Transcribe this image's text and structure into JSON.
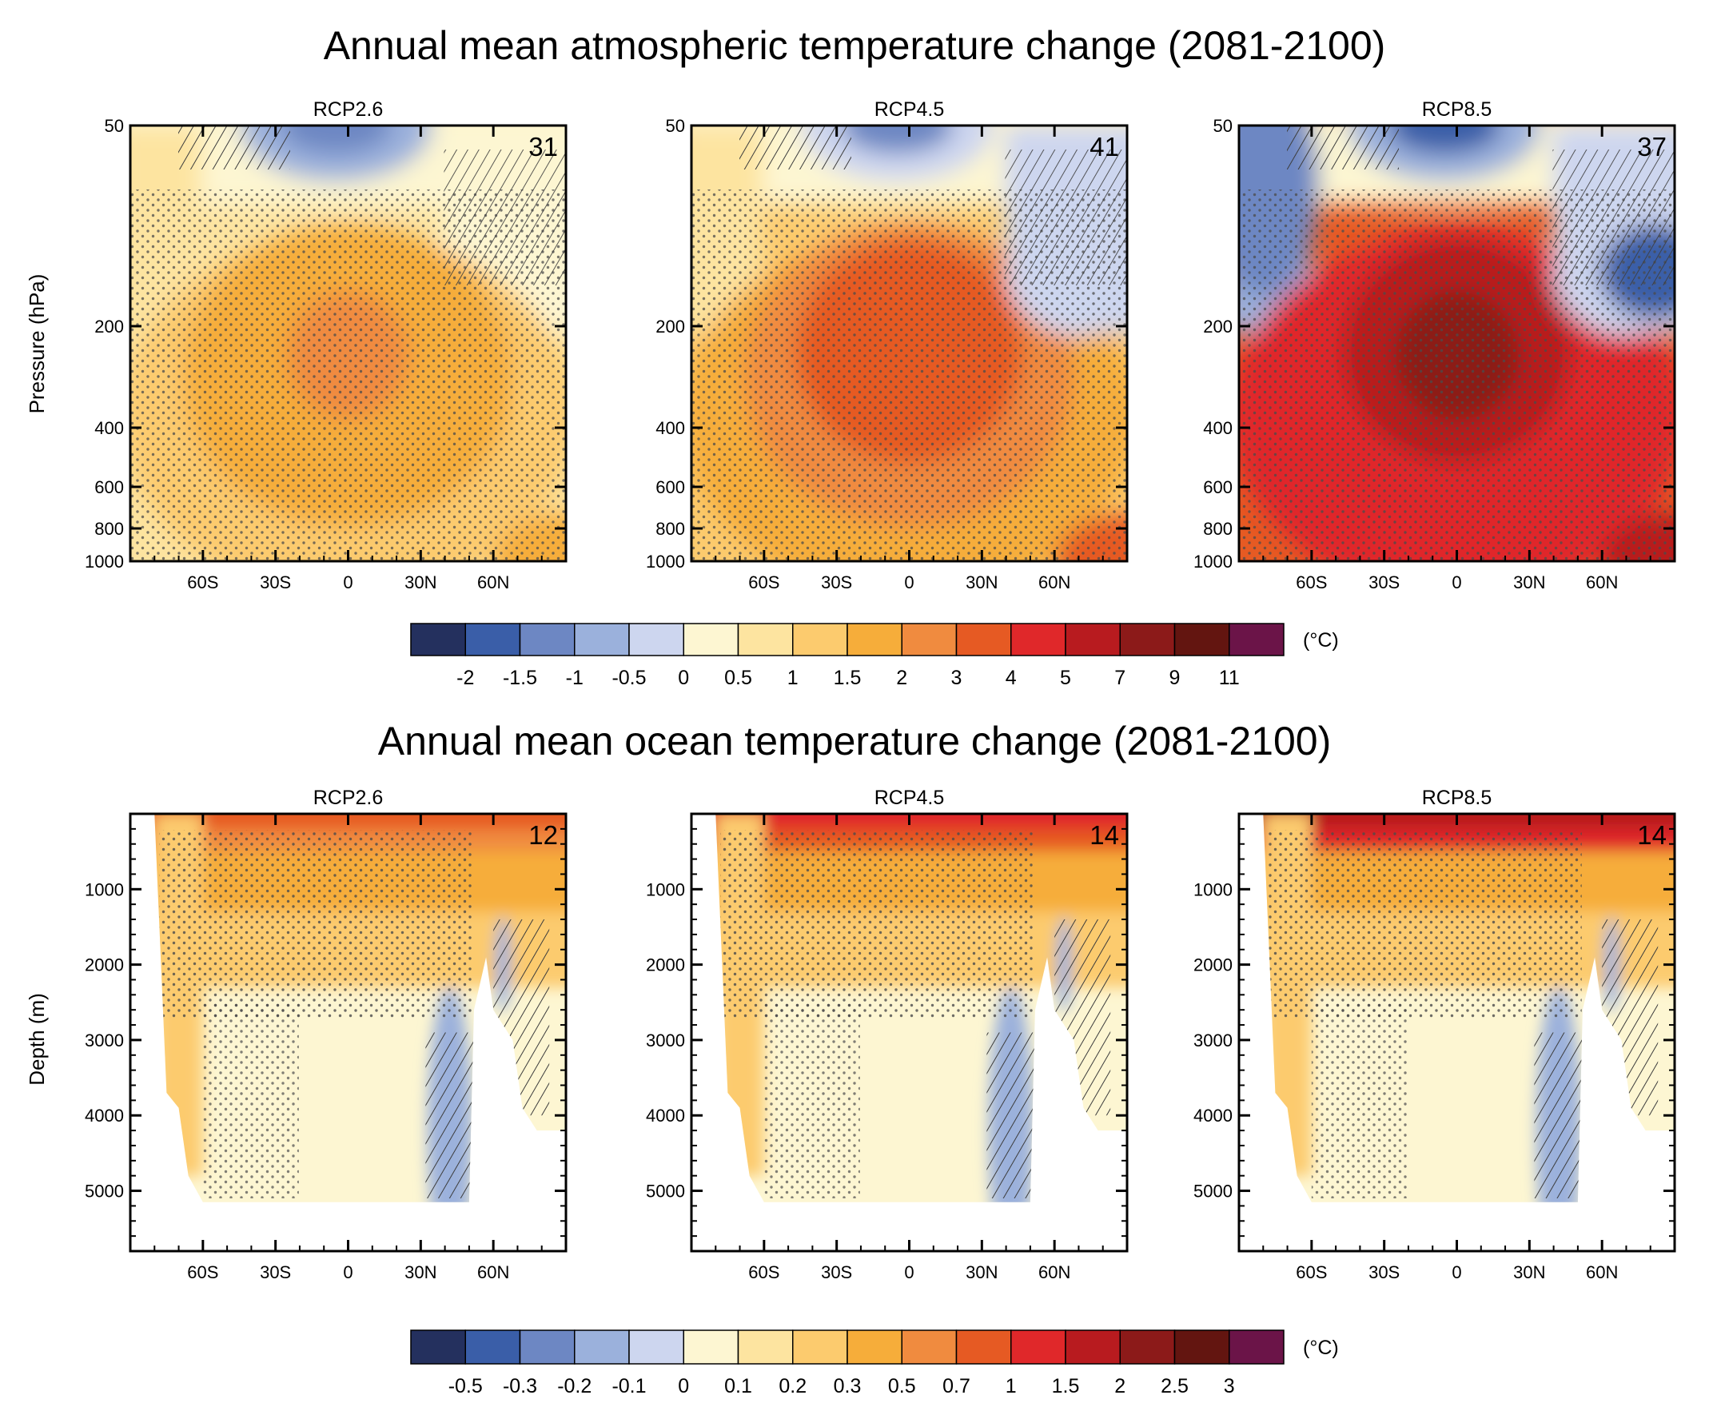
{
  "atmosphere": {
    "title": "Annual mean atmospheric temperature change (2081-2100)",
    "ylabel": "Pressure (hPa)",
    "unit": "(°C)",
    "y_ticks": [
      "50",
      "200",
      "400",
      "600",
      "800",
      "1000"
    ],
    "x_ticks": [
      "60S",
      "30S",
      "0",
      "30N",
      "60N"
    ],
    "colorbar_labels": [
      "-2",
      "-1.5",
      "-1",
      "-0.5",
      "0",
      "0.5",
      "1",
      "1.5",
      "2",
      "3",
      "4",
      "5",
      "7",
      "9",
      "11"
    ],
    "panels": [
      {
        "title": "RCP2.6",
        "models": "31"
      },
      {
        "title": "RCP4.5",
        "models": "41"
      },
      {
        "title": "RCP8.5",
        "models": "37"
      }
    ]
  },
  "ocean": {
    "title": "Annual mean ocean temperature change (2081-2100)",
    "ylabel": "Depth (m)",
    "unit": "(°C)",
    "y_ticks": [
      "1000",
      "2000",
      "3000",
      "4000",
      "5000"
    ],
    "x_ticks": [
      "60S",
      "30S",
      "0",
      "30N",
      "60N"
    ],
    "colorbar_labels": [
      "-0.5",
      "-0.3",
      "-0.2",
      "-0.1",
      "0",
      "0.1",
      "0.2",
      "0.3",
      "0.5",
      "0.7",
      "1",
      "1.5",
      "2",
      "2.5",
      "3"
    ],
    "panels": [
      {
        "title": "RCP2.6",
        "models": "12"
      },
      {
        "title": "RCP4.5",
        "models": "14"
      },
      {
        "title": "RCP8.5",
        "models": "14"
      }
    ]
  },
  "colorbar_colors": [
    "#24305e",
    "#3a5ea8",
    "#6d87c3",
    "#9bb1dc",
    "#cdd6ef",
    "#fdf6d2",
    "#fde4a0",
    "#fccb6e",
    "#f6ad3a",
    "#f08b3f",
    "#e65a23",
    "#e0282a",
    "#b81b1f",
    "#8c1a19",
    "#631510",
    "#6b1448"
  ],
  "chart_data": [
    {
      "type": "heatmap",
      "title": "Annual mean atmospheric temperature change (2081-2100)",
      "ylabel": "Pressure (hPa)",
      "unit": "°C",
      "x_range": [
        -90,
        90
      ],
      "y_range": [
        50,
        1000
      ],
      "x_ticks": [
        "60S",
        "30S",
        "0",
        "30N",
        "60N"
      ],
      "y_ticks": [
        50,
        200,
        400,
        600,
        800,
        1000
      ],
      "levels": [
        -2,
        -1.5,
        -1,
        -0.5,
        0,
        0.5,
        1,
        1.5,
        2,
        3,
        4,
        5,
        7,
        9,
        11
      ],
      "panels": [
        {
          "title": "RCP2.6",
          "models": 31,
          "tropical_upper_max": 2,
          "surface_mean": 1.5,
          "stratosphere_min": -1
        },
        {
          "title": "RCP4.5",
          "models": 41,
          "tropical_upper_max": 4,
          "surface_mean": 2,
          "stratosphere_min": -1.5
        },
        {
          "title": "RCP8.5",
          "models": 37,
          "tropical_upper_max": 7,
          "surface_mean": 4,
          "stratosphere_min": -2
        }
      ]
    },
    {
      "type": "heatmap",
      "title": "Annual mean ocean temperature change (2081-2100)",
      "ylabel": "Depth (m)",
      "unit": "°C",
      "x_range": [
        -90,
        90
      ],
      "y_range": [
        0,
        5800
      ],
      "x_ticks": [
        "60S",
        "30S",
        "0",
        "30N",
        "60N"
      ],
      "y_ticks": [
        1000,
        2000,
        3000,
        4000,
        5000
      ],
      "levels": [
        -0.5,
        -0.3,
        -0.2,
        -0.1,
        0,
        0.1,
        0.2,
        0.3,
        0.5,
        0.7,
        1,
        1.5,
        2,
        2.5,
        3
      ],
      "panels": [
        {
          "title": "RCP2.6",
          "models": 12,
          "surface_max": 0.7,
          "deep_mean": 0.1
        },
        {
          "title": "RCP4.5",
          "models": 14,
          "surface_max": 1.5,
          "deep_mean": 0.1
        },
        {
          "title": "RCP8.5",
          "models": 14,
          "surface_max": 2.5,
          "deep_mean": 0.1
        }
      ]
    }
  ]
}
